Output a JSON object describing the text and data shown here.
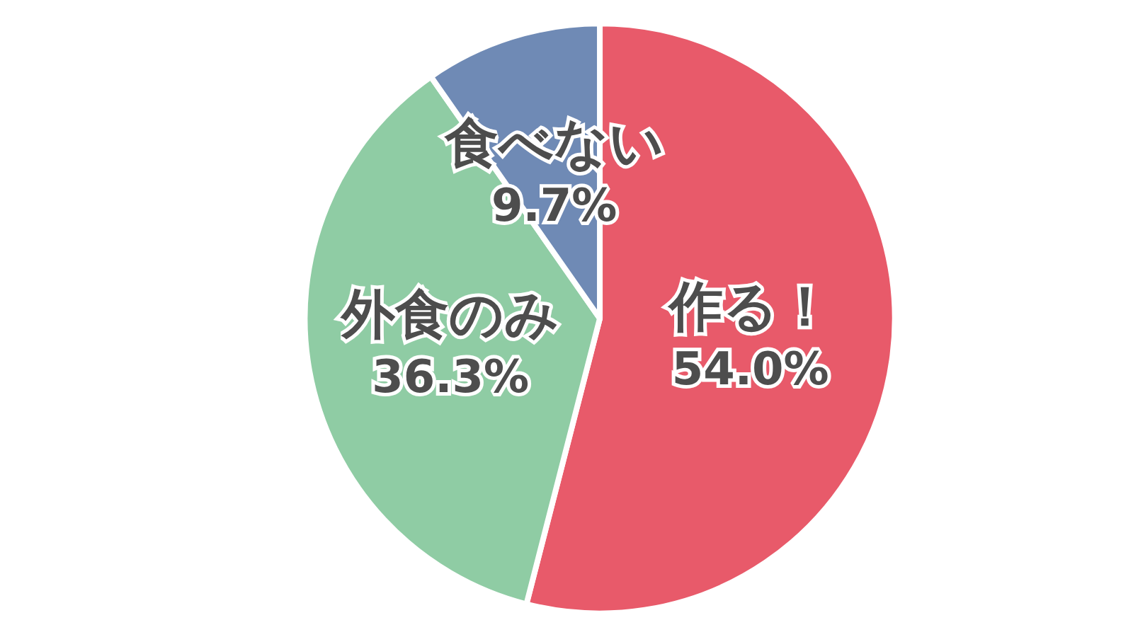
{
  "chart_data": {
    "type": "pie",
    "categories": [
      "作る！",
      "外食のみ",
      "食べない"
    ],
    "values": [
      54.0,
      36.3,
      9.7
    ],
    "colors": [
      "#e85a6a",
      "#8fcca4",
      "#6f8ab5"
    ],
    "value_labels": [
      "54.0%",
      "36.3%",
      "9.7%"
    ],
    "legend": false
  }
}
